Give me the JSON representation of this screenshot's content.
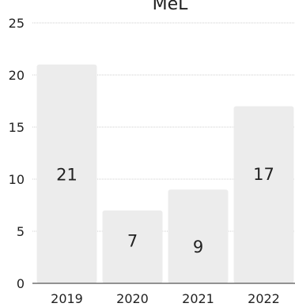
{
  "chart_data": {
    "type": "bar",
    "title": "MeL",
    "categories": [
      "2019",
      "2020",
      "2021",
      "2022"
    ],
    "values": [
      21,
      7,
      9,
      17
    ],
    "data_labels": [
      "21",
      "7",
      "9",
      "17"
    ],
    "ylim": [
      0,
      25
    ],
    "yticks": [
      "0",
      "5",
      "10",
      "15",
      "20",
      "25"
    ],
    "grid": true,
    "bar_color": "#ececec",
    "grid_color": "#cfcfcf",
    "text_color": "#222222"
  }
}
